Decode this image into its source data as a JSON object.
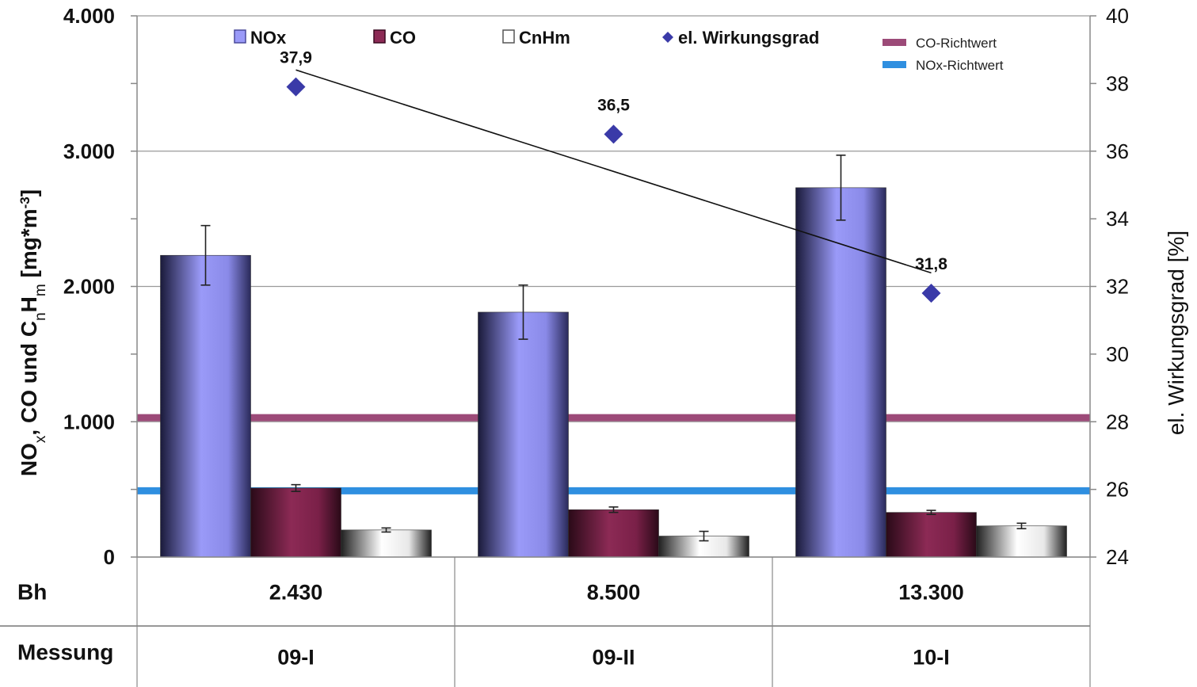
{
  "chart_data": {
    "type": "bar",
    "title": "",
    "categories": [
      "2.430",
      "8.500",
      "13.300"
    ],
    "table_rows": [
      {
        "label": "Bh",
        "values": [
          "2.430",
          "8.500",
          "13.300"
        ]
      },
      {
        "label": "Messung",
        "values": [
          "09-I",
          "09-II",
          "10-I"
        ]
      }
    ],
    "ylabel": "NOx, CO und CnHm [mg*m-3]",
    "y2label": "el. Wirkungsgrad [%]",
    "ylim": [
      0,
      4000
    ],
    "y2lim": [
      24,
      40
    ],
    "yticks": [
      "0",
      "1.000",
      "2.000",
      "3.000",
      "4.000"
    ],
    "y2ticks": [
      "24",
      "26",
      "28",
      "30",
      "32",
      "34",
      "36",
      "38",
      "40"
    ],
    "series": [
      {
        "name": "NOx",
        "values": [
          2230,
          1810,
          2730
        ],
        "error": [
          220,
          200,
          240
        ],
        "color": "#9090f0"
      },
      {
        "name": "CO",
        "values": [
          510,
          350,
          330
        ],
        "error": [
          25,
          20,
          15
        ],
        "color": "#8c2a55"
      },
      {
        "name": "CnHm",
        "values": [
          200,
          155,
          230
        ],
        "error": [
          15,
          35,
          20
        ],
        "color": "#d8d8d8"
      }
    ],
    "line_series": {
      "name": "el. Wirkungsgrad",
      "axis": "right",
      "values": [
        37.9,
        36.5,
        31.8
      ],
      "labels": [
        "37,9",
        "36,5",
        "31,8"
      ],
      "color": "#3a3aa8",
      "trend": [
        38.4,
        32.4
      ]
    },
    "reference_lines": [
      {
        "name": "CO-Richtwert",
        "value": 1030,
        "color": "#9c4a78"
      },
      {
        "name": "NOx-Richtwert",
        "value": 490,
        "color": "#2f8fe0"
      }
    ],
    "grid": true,
    "legend": "top"
  }
}
